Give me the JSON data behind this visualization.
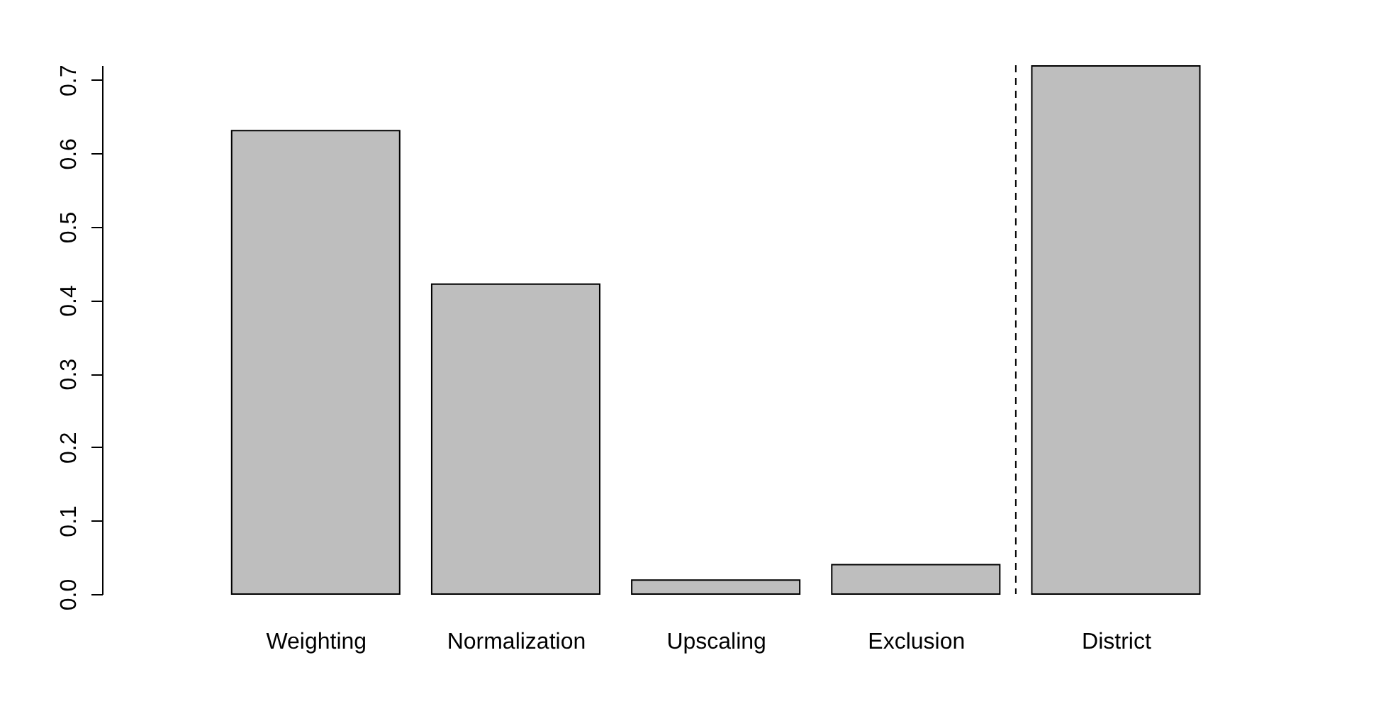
{
  "chart_data": {
    "type": "bar",
    "categories": [
      "Weighting",
      "Normalization",
      "Upscaling",
      "Exclusion",
      "District"
    ],
    "values": [
      0.631,
      0.422,
      0.019,
      0.04,
      0.719
    ],
    "color": "#bebebe",
    "ylim": [
      0,
      0.72
    ],
    "yticks": [
      {
        "value": 0,
        "label": "0.0"
      },
      0.1,
      0.2,
      0.3,
      0.4,
      0.5,
      0.6,
      0.7
    ],
    "grid": false
  }
}
